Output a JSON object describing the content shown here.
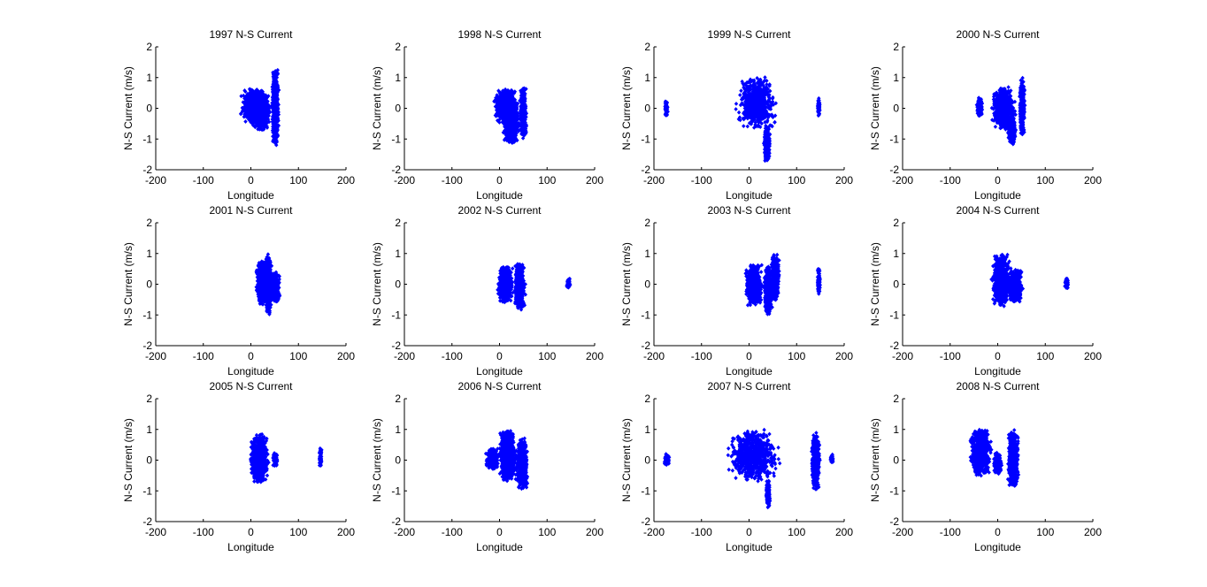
{
  "figure": {
    "background": "#ffffff",
    "marker_color": "#0000ff",
    "axis_color": "#000000"
  },
  "chart_data": [
    {
      "type": "scatter",
      "title": "1997 N-S Current",
      "xlabel": "Longitude",
      "ylabel": "N-S Current (m/s)",
      "xlim": [
        -200,
        200
      ],
      "ylim": [
        -2,
        2
      ],
      "xticks": [
        "-200",
        "-100",
        "0",
        "100",
        "200"
      ],
      "yticks": [
        "2",
        "1",
        "0",
        "-1",
        "-2"
      ],
      "grid": false,
      "clusters": [
        {
          "x": [
            -25,
            35
          ],
          "y": [
            -0.5,
            0.65
          ]
        },
        {
          "x": [
            0,
            42
          ],
          "y": [
            -0.75,
            0.6
          ]
        },
        {
          "x": [
            43,
            60
          ],
          "y": [
            -1.25,
            1.3
          ]
        }
      ]
    },
    {
      "type": "scatter",
      "title": "1998 N-S Current",
      "xlabel": "Longitude",
      "ylabel": "N-S Current (m/s)",
      "xlim": [
        -200,
        200
      ],
      "ylim": [
        -2,
        2
      ],
      "xticks": [
        "-200",
        "-100",
        "0",
        "100",
        "200"
      ],
      "yticks": [
        "2",
        "1",
        "0",
        "-1",
        "-2"
      ],
      "grid": false,
      "clusters": [
        {
          "x": [
            -15,
            40
          ],
          "y": [
            -0.5,
            0.65
          ]
        },
        {
          "x": [
            5,
            45
          ],
          "y": [
            -1.15,
            0.3
          ]
        },
        {
          "x": [
            42,
            58
          ],
          "y": [
            -1.0,
            0.7
          ]
        }
      ]
    },
    {
      "type": "scatter",
      "title": "1999 N-S Current",
      "xlabel": "Longitude",
      "ylabel": "N-S Current (m/s)",
      "xlim": [
        -200,
        200
      ],
      "ylim": [
        -2,
        2
      ],
      "xticks": [
        "-200",
        "-100",
        "0",
        "100",
        "200"
      ],
      "yticks": [
        "2",
        "1",
        "0",
        "-1",
        "-2"
      ],
      "grid": false,
      "clusters": [
        {
          "x": [
            -178,
            -170
          ],
          "y": [
            -0.25,
            0.25
          ]
        },
        {
          "x": [
            -30,
            60
          ],
          "y": [
            -0.65,
            1.05
          ]
        },
        {
          "x": [
            30,
            45
          ],
          "y": [
            -1.75,
            -0.5
          ]
        },
        {
          "x": [
            143,
            150
          ],
          "y": [
            -0.3,
            0.35
          ]
        }
      ]
    },
    {
      "type": "scatter",
      "title": "2000 N-S Current",
      "xlabel": "Longitude",
      "ylabel": "N-S Current (m/s)",
      "xlim": [
        -200,
        200
      ],
      "ylim": [
        -2,
        2
      ],
      "xticks": [
        "-200",
        "-100",
        "0",
        "100",
        "200"
      ],
      "yticks": [
        "2",
        "1",
        "0",
        "-1",
        "-2"
      ],
      "grid": false,
      "clusters": [
        {
          "x": [
            -45,
            -30
          ],
          "y": [
            -0.3,
            0.35
          ]
        },
        {
          "x": [
            -15,
            40
          ],
          "y": [
            -0.7,
            0.7
          ]
        },
        {
          "x": [
            20,
            40
          ],
          "y": [
            -1.2,
            -0.3
          ]
        },
        {
          "x": [
            45,
            58
          ],
          "y": [
            -0.9,
            1.0
          ]
        }
      ]
    },
    {
      "type": "scatter",
      "title": "2001 N-S Current",
      "xlabel": "Longitude",
      "ylabel": "N-S Current (m/s)",
      "xlim": [
        -200,
        200
      ],
      "ylim": [
        -2,
        2
      ],
      "xticks": [
        "-200",
        "-100",
        "0",
        "100",
        "200"
      ],
      "yticks": [
        "2",
        "1",
        "0",
        "-1",
        "-2"
      ],
      "grid": false,
      "clusters": [
        {
          "x": [
            10,
            40
          ],
          "y": [
            -0.7,
            0.8
          ]
        },
        {
          "x": [
            30,
            45
          ],
          "y": [
            -1.0,
            1.0
          ]
        },
        {
          "x": [
            40,
            62
          ],
          "y": [
            -0.6,
            0.4
          ]
        }
      ]
    },
    {
      "type": "scatter",
      "title": "2002 N-S Current",
      "xlabel": "Longitude",
      "ylabel": "N-S Current (m/s)",
      "xlim": [
        -200,
        200
      ],
      "ylim": [
        -2,
        2
      ],
      "xticks": [
        "-200",
        "-100",
        "0",
        "100",
        "200"
      ],
      "yticks": [
        "2",
        "1",
        "0",
        "-1",
        "-2"
      ],
      "grid": false,
      "clusters": [
        {
          "x": [
            -5,
            30
          ],
          "y": [
            -0.6,
            0.6
          ]
        },
        {
          "x": [
            30,
            55
          ],
          "y": [
            -0.85,
            0.7
          ]
        },
        {
          "x": [
            140,
            150
          ],
          "y": [
            -0.15,
            0.2
          ]
        }
      ]
    },
    {
      "type": "scatter",
      "title": "2003 N-S Current",
      "xlabel": "Longitude",
      "ylabel": "N-S Current (m/s)",
      "xlim": [
        -200,
        200
      ],
      "ylim": [
        -2,
        2
      ],
      "xticks": [
        "-200",
        "-100",
        "0",
        "100",
        "200"
      ],
      "yticks": [
        "2",
        "1",
        "0",
        "-1",
        "-2"
      ],
      "grid": false,
      "clusters": [
        {
          "x": [
            -10,
            30
          ],
          "y": [
            -0.7,
            0.7
          ]
        },
        {
          "x": [
            30,
            50
          ],
          "y": [
            -1.0,
            0.6
          ]
        },
        {
          "x": [
            45,
            65
          ],
          "y": [
            -0.55,
            1.0
          ]
        },
        {
          "x": [
            143,
            150
          ],
          "y": [
            -0.35,
            0.6
          ]
        }
      ]
    },
    {
      "type": "scatter",
      "title": "2004 N-S Current",
      "xlabel": "Longitude",
      "ylabel": "N-S Current (m/s)",
      "xlim": [
        -200,
        200
      ],
      "ylim": [
        -2,
        2
      ],
      "xticks": [
        "-200",
        "-100",
        "0",
        "100",
        "200"
      ],
      "yticks": [
        "2",
        "1",
        "0",
        "-1",
        "-2"
      ],
      "grid": false,
      "clusters": [
        {
          "x": [
            -15,
            30
          ],
          "y": [
            -0.75,
            1.0
          ]
        },
        {
          "x": [
            20,
            55
          ],
          "y": [
            -0.6,
            0.5
          ]
        },
        {
          "x": [
            140,
            150
          ],
          "y": [
            -0.15,
            0.2
          ]
        }
      ]
    },
    {
      "type": "scatter",
      "title": "2005 N-S Current",
      "xlabel": "Longitude",
      "ylabel": "N-S Current (m/s)",
      "xlim": [
        -200,
        200
      ],
      "ylim": [
        -2,
        2
      ],
      "xticks": [
        "-200",
        "-100",
        "0",
        "100",
        "200"
      ],
      "yticks": [
        "2",
        "1",
        "0",
        "-1",
        "-2"
      ],
      "grid": false,
      "clusters": [
        {
          "x": [
            -5,
            40
          ],
          "y": [
            -0.75,
            0.85
          ]
        },
        {
          "x": [
            45,
            58
          ],
          "y": [
            -0.2,
            0.25
          ]
        },
        {
          "x": [
            143,
            150
          ],
          "y": [
            -0.25,
            0.4
          ]
        }
      ]
    },
    {
      "type": "scatter",
      "title": "2006 N-S Current",
      "xlabel": "Longitude",
      "ylabel": "N-S Current (m/s)",
      "xlim": [
        -200,
        200
      ],
      "ylim": [
        -2,
        2
      ],
      "xticks": [
        "-200",
        "-100",
        "0",
        "100",
        "200"
      ],
      "yticks": [
        "2",
        "1",
        "0",
        "-1",
        "-2"
      ],
      "grid": false,
      "clusters": [
        {
          "x": [
            -30,
            0
          ],
          "y": [
            -0.3,
            0.4
          ]
        },
        {
          "x": [
            -5,
            40
          ],
          "y": [
            -0.7,
            1.0
          ]
        },
        {
          "x": [
            35,
            60
          ],
          "y": [
            -0.95,
            0.75
          ]
        }
      ]
    },
    {
      "type": "scatter",
      "title": "2007 N-S Current",
      "xlabel": "Longitude",
      "ylabel": "N-S Current (m/s)",
      "xlim": [
        -200,
        200
      ],
      "ylim": [
        -2,
        2
      ],
      "xticks": [
        "-200",
        "-100",
        "0",
        "100",
        "200"
      ],
      "yticks": [
        "2",
        "1",
        "0",
        "-1",
        "-2"
      ],
      "grid": false,
      "clusters": [
        {
          "x": [
            -180,
            -165
          ],
          "y": [
            -0.2,
            0.2
          ]
        },
        {
          "x": [
            -50,
            70
          ],
          "y": [
            -0.7,
            1.0
          ]
        },
        {
          "x": [
            35,
            45
          ],
          "y": [
            -1.6,
            -0.6
          ]
        },
        {
          "x": [
            130,
            150
          ],
          "y": [
            -1.0,
            0.9
          ]
        },
        {
          "x": [
            170,
            178
          ],
          "y": [
            -0.1,
            0.2
          ]
        }
      ]
    },
    {
      "type": "scatter",
      "title": "2008 N-S Current",
      "xlabel": "Longitude",
      "ylabel": "N-S Current (m/s)",
      "xlim": [
        -200,
        200
      ],
      "ylim": [
        -2,
        2
      ],
      "xticks": [
        "-200",
        "-100",
        "0",
        "100",
        "200"
      ],
      "yticks": [
        "2",
        "1",
        "0",
        "-1",
        "-2"
      ],
      "grid": false,
      "clusters": [
        {
          "x": [
            -60,
            -10
          ],
          "y": [
            -0.55,
            1.05
          ]
        },
        {
          "x": [
            -10,
            10
          ],
          "y": [
            -0.45,
            0.25
          ]
        },
        {
          "x": [
            20,
            45
          ],
          "y": [
            -0.9,
            1.0
          ]
        }
      ]
    }
  ]
}
